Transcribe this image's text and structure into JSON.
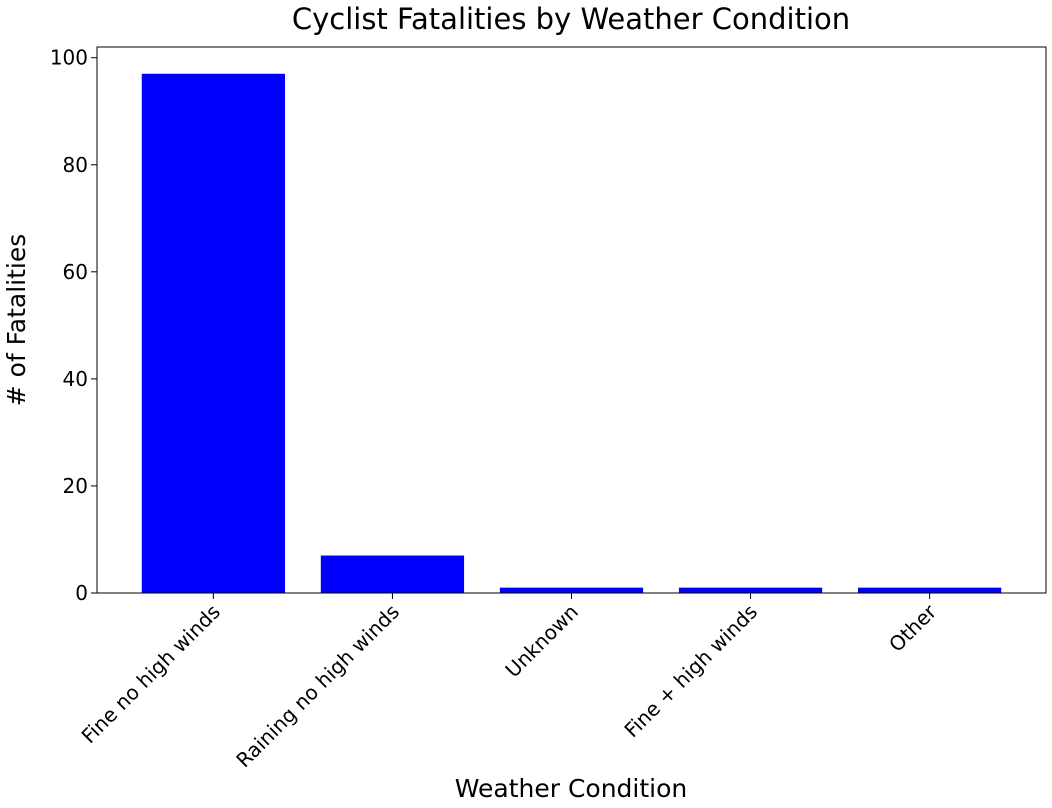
{
  "chart_data": {
    "type": "bar",
    "title": "Cyclist Fatalities by Weather Condition",
    "xlabel": "Weather Condition",
    "ylabel": "# of Fatalities",
    "categories": [
      "Fine no high winds",
      "Raining no high winds",
      "Unknown",
      "Fine + high winds",
      "Other"
    ],
    "values": [
      97,
      7,
      1,
      1,
      1
    ],
    "ylim": [
      0,
      102
    ],
    "yticks": [
      0,
      20,
      40,
      60,
      80,
      100
    ],
    "bar_color": "#0000ff",
    "grid": false,
    "legend": "none"
  }
}
